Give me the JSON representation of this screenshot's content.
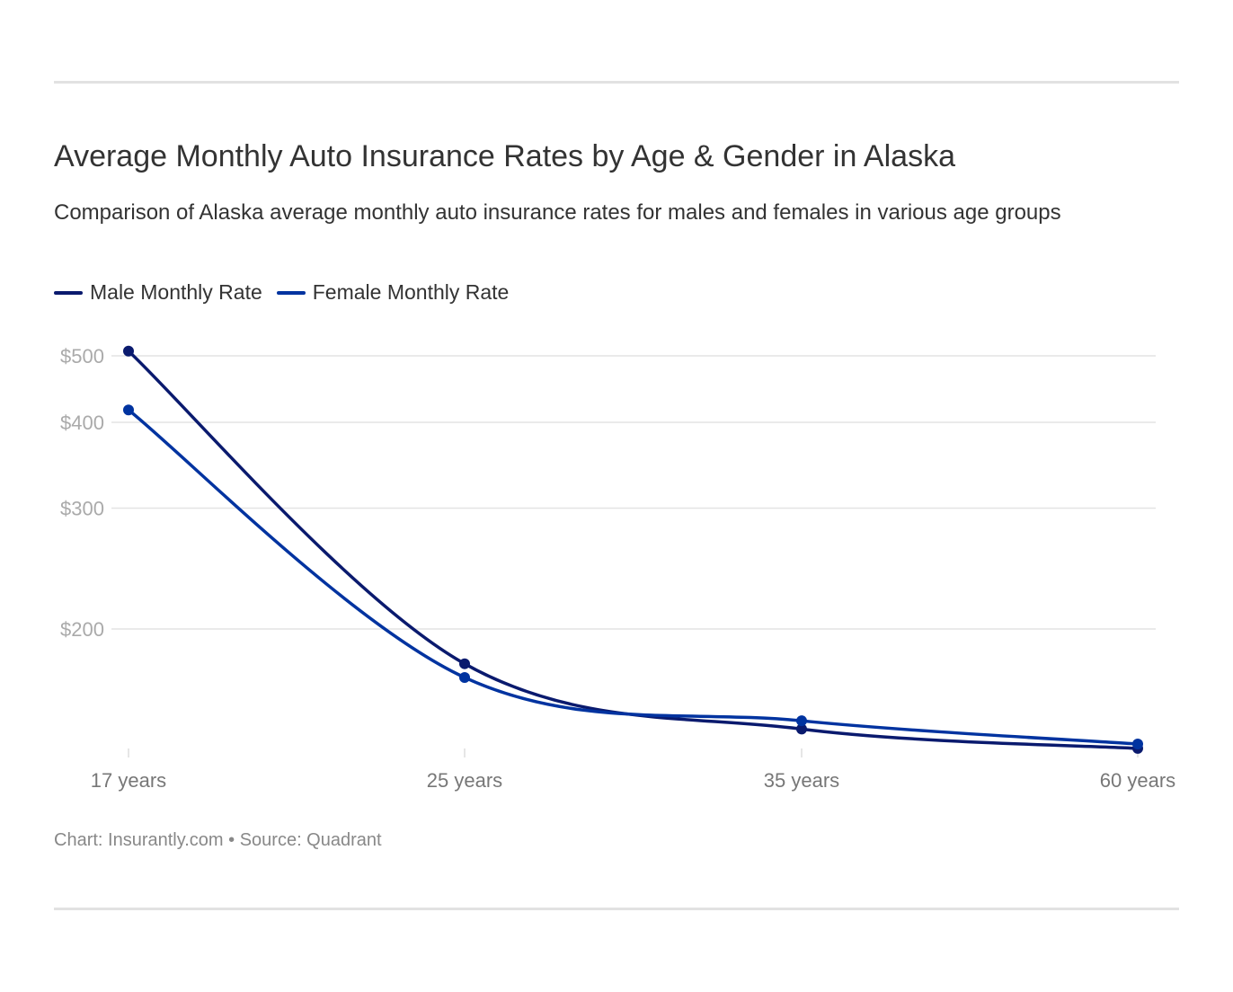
{
  "chart_data": {
    "type": "line",
    "title": "Average Monthly Auto Insurance Rates by Age & Gender in Alaska",
    "subtitle": "Comparison of Alaska average monthly auto insurance rates for males and females in various age groups",
    "categories": [
      "17 years",
      "25 years",
      "35 years",
      "60 years"
    ],
    "series": [
      {
        "name": "Male Monthly Rate",
        "color": "#0a1a6e",
        "values": [
          508,
          178,
          143,
          134
        ]
      },
      {
        "name": "Female Monthly Rate",
        "color": "#0033a0",
        "values": [
          417,
          170,
          147,
          136
        ]
      }
    ],
    "y_scale": "log",
    "y_ticks": [
      200,
      300,
      400,
      500
    ],
    "y_tick_labels": [
      "$200",
      "$300",
      "$400",
      "$500"
    ],
    "grid": true,
    "legend": "top-left",
    "footer": "Chart: Insurantly.com • Source: Quadrant"
  }
}
